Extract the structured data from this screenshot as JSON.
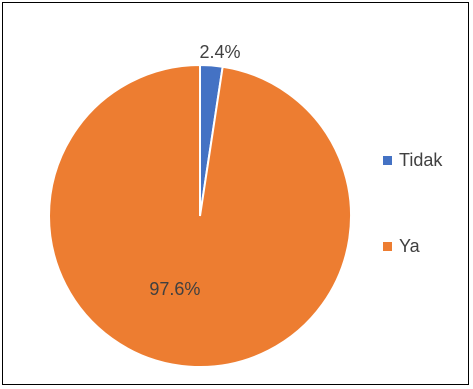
{
  "chart_data": {
    "type": "pie",
    "categories": [
      "Tidak",
      "Ya"
    ],
    "values": [
      2.4,
      97.6
    ],
    "data_labels": [
      "2.4%",
      "97.6%"
    ],
    "colors": [
      "#4472C4",
      "#ED7D31"
    ],
    "legend_position": "right",
    "start_angle": "top, clockwise"
  }
}
